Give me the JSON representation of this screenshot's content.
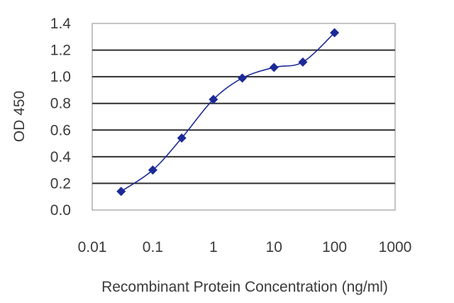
{
  "chart_data": {
    "type": "line",
    "xlabel": "Recombinant Protein Concentration (ng/ml)",
    "ylabel": "OD 450",
    "xscale": "log",
    "xlim": [
      0.01,
      1000
    ],
    "ylim": [
      0.0,
      1.4
    ],
    "x_ticks": [
      "0.01",
      "0.1",
      "1",
      "10",
      "100",
      "1000"
    ],
    "y_ticks": [
      "0.0",
      "0.2",
      "0.4",
      "0.6",
      "0.8",
      "1.0",
      "1.2",
      "1.4"
    ],
    "grid": "horizontal",
    "series": [
      {
        "color": "#1c2a99",
        "marker": "diamond",
        "x": [
          0.03,
          0.1,
          0.3,
          1,
          3,
          10,
          30,
          100
        ],
        "y": [
          0.14,
          0.3,
          0.54,
          0.83,
          0.99,
          1.07,
          1.11,
          1.33
        ]
      }
    ]
  }
}
